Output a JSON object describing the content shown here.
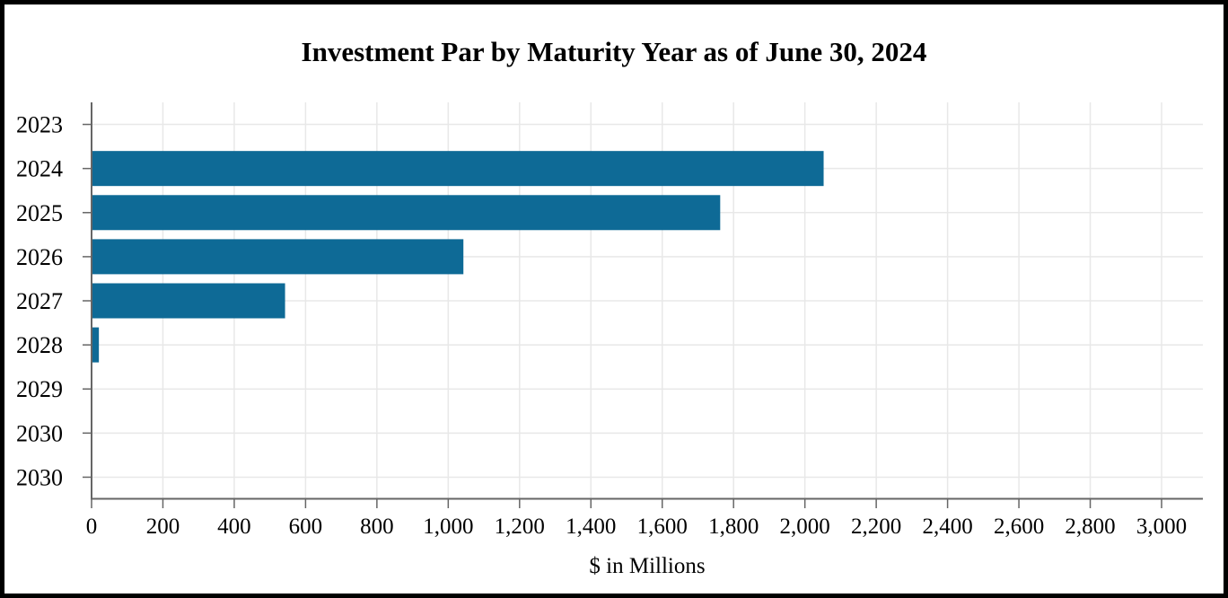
{
  "chart_data": {
    "type": "bar",
    "orientation": "horizontal",
    "title": "Investment Par by Maturity Year as of June 30, 2024",
    "xlabel": "$ in Millions",
    "ylabel": "",
    "categories": [
      "2023",
      "2024",
      "2025",
      "2026",
      "2027",
      "2028",
      "2029",
      "2030",
      "2030"
    ],
    "values": [
      0,
      2050,
      1760,
      1040,
      540,
      18,
      0,
      0,
      0
    ],
    "xlim": [
      0,
      3120
    ],
    "x_ticks": [
      0,
      200,
      400,
      600,
      800,
      1000,
      1200,
      1400,
      1600,
      1800,
      2000,
      2200,
      2400,
      2600,
      2800,
      3000
    ],
    "grid": true,
    "legend": "none"
  },
  "colors": {
    "bar": "#0e6a96",
    "axis": "#666666",
    "gridline": "#e8e8e8",
    "text": "#000000",
    "frame_border": "#000000",
    "background": "#ffffff"
  }
}
